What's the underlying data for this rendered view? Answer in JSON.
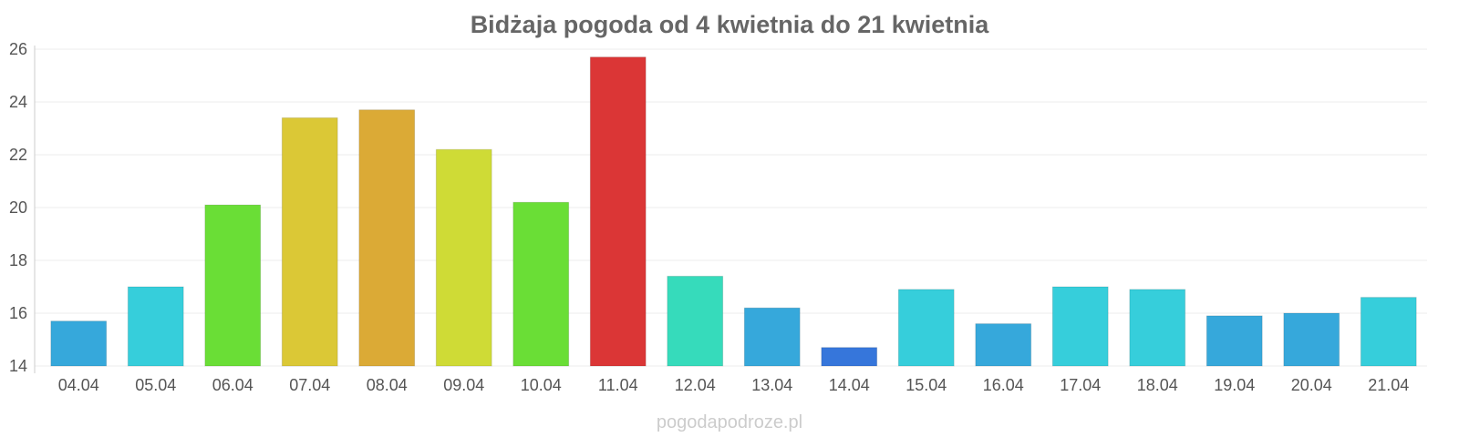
{
  "chart_data": {
    "type": "bar",
    "title": "Bidżaja pogoda od 4 kwietnia do 21 kwietnia",
    "xlabel": "",
    "ylabel": "",
    "ylim": [
      14,
      26
    ],
    "yticks": [
      14,
      16,
      18,
      20,
      22,
      24,
      26
    ],
    "grid": true,
    "categories": [
      "04.04",
      "05.04",
      "06.04",
      "07.04",
      "08.04",
      "09.04",
      "10.04",
      "11.04",
      "12.04",
      "13.04",
      "14.04",
      "15.04",
      "16.04",
      "17.04",
      "18.04",
      "19.04",
      "20.04",
      "21.04"
    ],
    "values": [
      15.7,
      17.0,
      20.1,
      23.4,
      23.7,
      22.2,
      20.2,
      25.7,
      17.4,
      16.2,
      14.7,
      16.9,
      15.6,
      17.0,
      16.9,
      15.9,
      16.0,
      16.6
    ],
    "colors": [
      "#36a8db",
      "#36cedb",
      "#6ade36",
      "#dbc836",
      "#dbaa36",
      "#cfdb36",
      "#6ade36",
      "#db3636",
      "#36dbbb",
      "#36a8db",
      "#3676db",
      "#36cedb",
      "#36a8db",
      "#36cedb",
      "#36cedb",
      "#36a8db",
      "#36a8db",
      "#36cedb"
    ]
  },
  "watermark": "pogodapodroze.pl"
}
